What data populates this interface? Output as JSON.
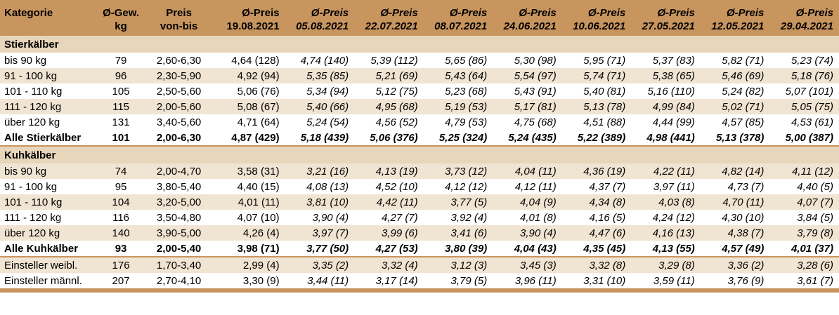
{
  "header": {
    "kategorie": "Kategorie",
    "gewicht": [
      "Ø-Gew.",
      "kg"
    ],
    "preis": [
      "Preis",
      "von-bis"
    ],
    "current": [
      "Ø-Preis",
      "19.08.2021"
    ],
    "history": [
      [
        "Ø-Preis",
        "05.08.2021"
      ],
      [
        "Ø-Preis",
        "22.07.2021"
      ],
      [
        "Ø-Preis",
        "08.07.2021"
      ],
      [
        "Ø-Preis",
        "24.06.2021"
      ],
      [
        "Ø-Preis",
        "10.06.2021"
      ],
      [
        "Ø-Preis",
        "27.05.2021"
      ],
      [
        "Ø-Preis",
        "12.05.2021"
      ],
      [
        "Ø-Preis",
        "29.04.2021"
      ]
    ]
  },
  "rows": [
    {
      "kind": "section",
      "label": "Stierkälber"
    },
    {
      "kind": "data",
      "style": "white",
      "label": "bis 90 kg",
      "kg": "79",
      "range": "2,60-6,30",
      "cur": "4,64 (128)",
      "hist": [
        "4,74 (140)",
        "5,39 (112)",
        "5,65 (86)",
        "5,30 (98)",
        "5,95 (71)",
        "5,37 (83)",
        "5,82 (71)",
        "5,23 (74)"
      ]
    },
    {
      "kind": "data",
      "style": "alt",
      "label": "91 - 100 kg",
      "kg": "96",
      "range": "2,30-5,90",
      "cur": "4,92 (94)",
      "hist": [
        "5,35 (85)",
        "5,21 (69)",
        "5,43 (64)",
        "5,54 (97)",
        "5,74 (71)",
        "5,38 (65)",
        "5,46 (69)",
        "5,18 (76)"
      ]
    },
    {
      "kind": "data",
      "style": "white",
      "label": "101 - 110 kg",
      "kg": "105",
      "range": "2,50-5,60",
      "cur": "5,06 (76)",
      "hist": [
        "5,34 (94)",
        "5,12 (75)",
        "5,23 (68)",
        "5,43 (91)",
        "5,40 (81)",
        "5,16 (110)",
        "5,24 (82)",
        "5,07 (101)"
      ]
    },
    {
      "kind": "data",
      "style": "alt",
      "label": "111 - 120 kg",
      "kg": "115",
      "range": "2,00-5,60",
      "cur": "5,08 (67)",
      "hist": [
        "5,40 (66)",
        "4,95 (68)",
        "5,19 (53)",
        "5,17 (81)",
        "5,13 (78)",
        "4,99 (84)",
        "5,02 (71)",
        "5,05 (75)"
      ]
    },
    {
      "kind": "data",
      "style": "white",
      "label": "über 120 kg",
      "kg": "131",
      "range": "3,40-5,60",
      "cur": "4,71 (64)",
      "hist": [
        "5,24 (54)",
        "4,56 (52)",
        "4,79 (53)",
        "4,75 (68)",
        "4,51 (88)",
        "4,44 (99)",
        "4,57 (85)",
        "4,53 (61)"
      ]
    },
    {
      "kind": "total",
      "label": "Alle Stierkälber",
      "kg": "101",
      "range": "2,00-6,30",
      "cur": "4,87 (429)",
      "hist": [
        "5,18 (439)",
        "5,06 (376)",
        "5,25 (324)",
        "5,24 (435)",
        "5,22 (389)",
        "4,98 (441)",
        "5,13 (378)",
        "5,00 (387)"
      ]
    },
    {
      "kind": "section",
      "label": "Kuhkälber"
    },
    {
      "kind": "data",
      "style": "alt",
      "label": "bis 90 kg",
      "kg": "74",
      "range": "2,00-4,70",
      "cur": "3,58 (31)",
      "hist": [
        "3,21 (16)",
        "4,13 (19)",
        "3,73 (12)",
        "4,04 (11)",
        "4,36 (19)",
        "4,22 (11)",
        "4,82 (14)",
        "4,11 (12)"
      ]
    },
    {
      "kind": "data",
      "style": "white",
      "label": "91 - 100 kg",
      "kg": "95",
      "range": "3,80-5,40",
      "cur": "4,40 (15)",
      "hist": [
        "4,08 (13)",
        "4,52 (10)",
        "4,12 (12)",
        "4,12 (11)",
        "4,37 (7)",
        "3,97 (11)",
        "4,73 (7)",
        "4,40 (5)"
      ]
    },
    {
      "kind": "data",
      "style": "alt",
      "label": "101 - 110 kg",
      "kg": "104",
      "range": "3,20-5,00",
      "cur": "4,01 (11)",
      "hist": [
        "3,81 (10)",
        "4,42 (11)",
        "3,77 (5)",
        "4,04 (9)",
        "4,34 (8)",
        "4,03 (8)",
        "4,70 (11)",
        "4,07 (7)"
      ]
    },
    {
      "kind": "data",
      "style": "white",
      "label": "111 - 120 kg",
      "kg": "116",
      "range": "3,50-4,80",
      "cur": "4,07 (10)",
      "hist": [
        "3,90 (4)",
        "4,27 (7)",
        "3,92 (4)",
        "4,01 (8)",
        "4,16 (5)",
        "4,24 (12)",
        "4,30 (10)",
        "3,84 (5)"
      ]
    },
    {
      "kind": "data",
      "style": "alt",
      "label": "über 120 kg",
      "kg": "140",
      "range": "3,90-5,00",
      "cur": "4,26 (4)",
      "hist": [
        "3,97 (7)",
        "3,99 (6)",
        "3,41 (6)",
        "3,90 (4)",
        "4,47 (6)",
        "4,16 (13)",
        "4,38 (7)",
        "3,79 (8)"
      ]
    },
    {
      "kind": "total",
      "label": "Alle Kuhkälber",
      "kg": "93",
      "range": "2,00-5,40",
      "cur": "3,98 (71)",
      "hist": [
        "3,77 (50)",
        "4,27 (53)",
        "3,80 (39)",
        "4,04 (43)",
        "4,35 (45)",
        "4,13 (55)",
        "4,57 (49)",
        "4,01 (37)"
      ]
    },
    {
      "kind": "data",
      "style": "alt",
      "sep": true,
      "label": "Einsteller weibl.",
      "kg": "176",
      "range": "1,70-3,40",
      "cur": "2,99 (4)",
      "hist": [
        "3,35 (2)",
        "3,32 (4)",
        "3,12 (3)",
        "3,45 (3)",
        "3,32 (8)",
        "3,29 (8)",
        "3,36 (2)",
        "3,28 (6)"
      ]
    },
    {
      "kind": "data",
      "style": "white",
      "label": "Einsteller männl.",
      "kg": "207",
      "range": "2,70-4,10",
      "cur": "3,30 (9)",
      "hist": [
        "3,44 (11)",
        "3,17 (14)",
        "3,79 (5)",
        "3,96 (11)",
        "3,31 (10)",
        "3,59 (11)",
        "3,76 (9)",
        "3,61 (7)"
      ]
    }
  ]
}
